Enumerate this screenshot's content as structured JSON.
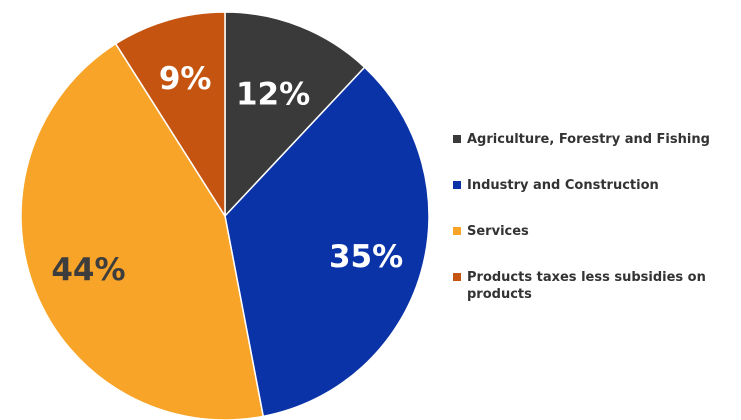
{
  "chart_data": {
    "type": "pie",
    "categories": [
      "Agriculture, Forestry and Fishing",
      "Industry and Construction",
      "Services",
      "Products taxes less subsidies on products"
    ],
    "values": [
      12,
      35,
      44,
      9
    ],
    "labels": [
      "12%",
      "35%",
      "44%",
      "9%"
    ],
    "colors": [
      "#3a3a3a",
      "#0a33a8",
      "#f7a428",
      "#c65411"
    ],
    "label_colors": [
      "#ffffff",
      "#ffffff",
      "#3d3d3d",
      "#ffffff"
    ],
    "start": "12 o'clock",
    "direction": "clockwise",
    "legend_position": "right",
    "title": ""
  }
}
